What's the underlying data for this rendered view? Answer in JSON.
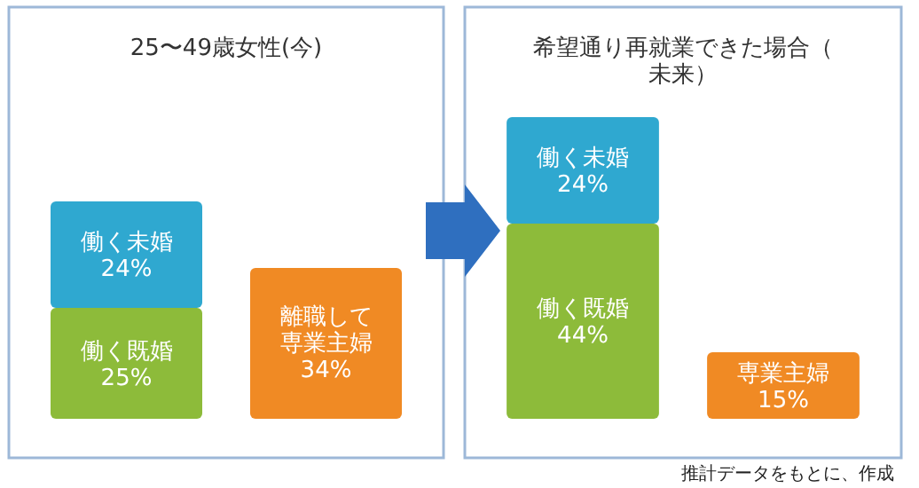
{
  "chart_data": [
    {
      "type": "bar",
      "title": "25〜49歳女性(今)",
      "stacked": true,
      "categories": [
        null,
        null
      ],
      "series": [
        {
          "name": "働く既婚",
          "color": "#8dbb3a",
          "values": [
            25,
            null
          ],
          "value_labels": [
            "25%",
            null
          ]
        },
        {
          "name": "働く未婚",
          "color": "#2fa8d0",
          "values": [
            24,
            null
          ],
          "value_labels": [
            "24%",
            null
          ]
        },
        {
          "name": "離職して専業主婦",
          "color": "#f08a24",
          "values": [
            null,
            34
          ],
          "value_labels": [
            null,
            "34%"
          ]
        }
      ]
    },
    {
      "type": "bar",
      "title": "希望通り再就業できた場合（未来）",
      "stacked": true,
      "categories": [
        null,
        null
      ],
      "series": [
        {
          "name": "働く既婚",
          "color": "#8dbb3a",
          "values": [
            44,
            null
          ],
          "value_labels": [
            "44%",
            null
          ]
        },
        {
          "name": "働く未婚",
          "color": "#2fa8d0",
          "values": [
            24,
            null
          ],
          "value_labels": [
            "24%",
            null
          ]
        },
        {
          "name": "専業主婦",
          "color": "#f08a24",
          "values": [
            null,
            15
          ],
          "value_labels": [
            null,
            "15%"
          ]
        }
      ],
      "annotations": [
        "推計データをもとに、作成"
      ]
    }
  ]
}
